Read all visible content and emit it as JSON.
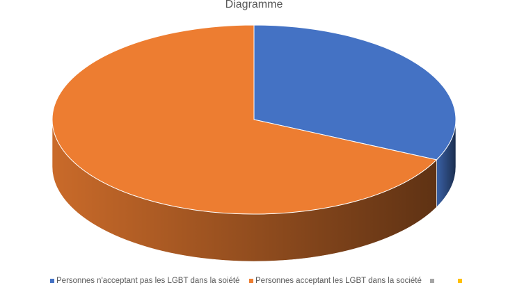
{
  "chart_data": {
    "type": "pie",
    "title": "Diagramme",
    "categories": [
      "Personnes n'acceptant pas les LGBT dans la soiété",
      "Personnes acceptant les LGBT dans la société",
      null,
      null
    ],
    "values": [
      32,
      68,
      0,
      0
    ],
    "colors": [
      "#4472c4",
      "#ed7d31",
      "#a5a5a5",
      "#ffc000"
    ],
    "legend": "bottom"
  }
}
